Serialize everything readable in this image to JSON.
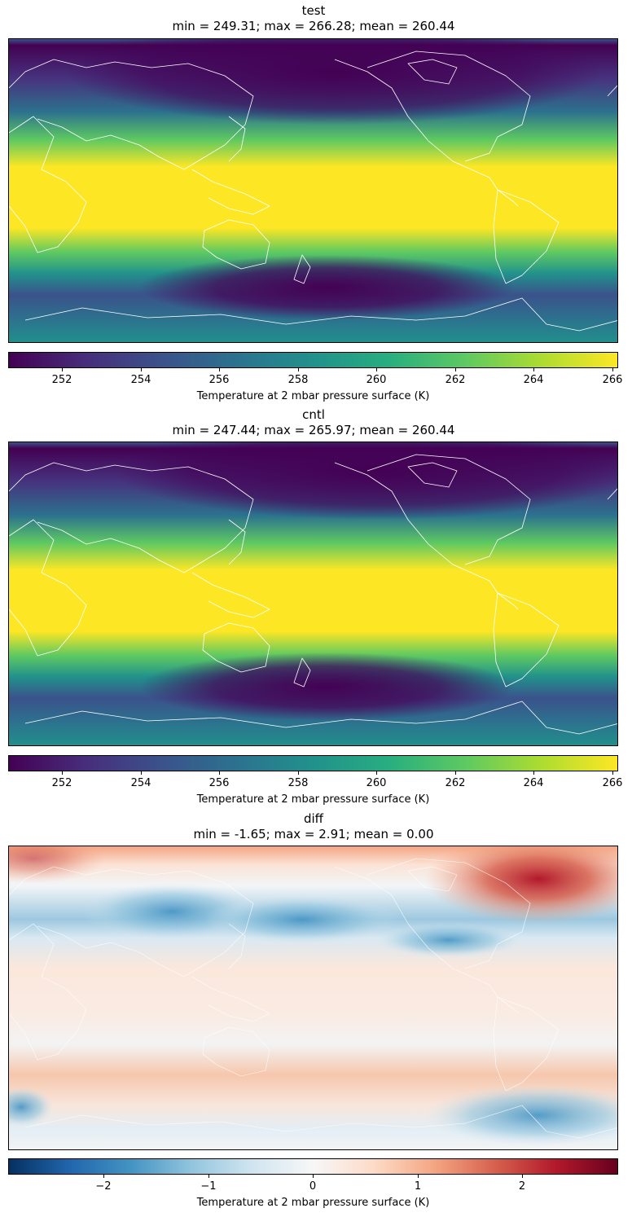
{
  "panels": [
    {
      "title": "test",
      "stats": "min = 249.31; max = 266.28; mean = 260.44",
      "colormap": "viridis",
      "tick_labels": [
        "252",
        "254",
        "256",
        "258",
        "260",
        "262",
        "264",
        "266"
      ],
      "colorbar_label": "Temperature at 2 mbar pressure surface (K)"
    },
    {
      "title": "cntl",
      "stats": "min = 247.44; max = 265.97; mean = 260.44",
      "colormap": "viridis",
      "tick_labels": [
        "252",
        "254",
        "256",
        "258",
        "260",
        "262",
        "264",
        "266"
      ],
      "colorbar_label": "Temperature at 2 mbar pressure surface (K)"
    },
    {
      "title": "diff",
      "stats": "min = -1.65; max = 2.91; mean = 0.00",
      "colormap": "RdBu_r",
      "tick_labels": [
        "−2",
        "−1",
        "0",
        "1",
        "2"
      ],
      "colorbar_label": "Temperature at 2 mbar pressure surface (K)"
    }
  ],
  "colors": {
    "viridis": [
      "#440154",
      "#472d7b",
      "#3b528b",
      "#2c728e",
      "#21918c",
      "#28ae80",
      "#5ec962",
      "#addc30",
      "#fde725"
    ],
    "rdbu_r": [
      "#053061",
      "#2166ac",
      "#4393c3",
      "#92c5de",
      "#d1e5f0",
      "#f7f7f7",
      "#fddbc7",
      "#f4a582",
      "#d6604d",
      "#b2182b",
      "#67001f"
    ],
    "coastline": "#ffffff"
  }
}
